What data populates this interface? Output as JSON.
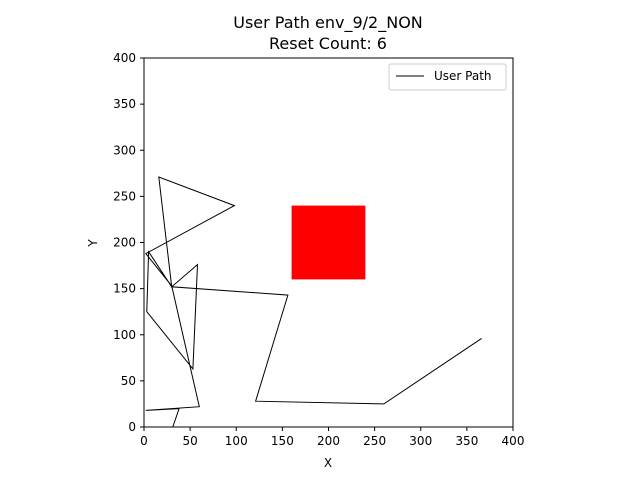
{
  "chart_data": {
    "type": "line",
    "title": "User Path env_9/2_NON",
    "subtitle": "Reset Count: 6",
    "xlabel": "X",
    "ylabel": "Y",
    "xlim": [
      0,
      400
    ],
    "ylim": [
      0,
      400
    ],
    "xticks": [
      "0",
      "50",
      "100",
      "150",
      "200",
      "250",
      "300",
      "350",
      "400"
    ],
    "yticks": [
      "0",
      "50",
      "100",
      "150",
      "200",
      "250",
      "300",
      "350",
      "400"
    ],
    "grid": false,
    "legend": {
      "position": "top-right",
      "entries": [
        "User Path"
      ]
    },
    "series": [
      {
        "name": "User Path",
        "color": "#000000",
        "x": [
          366,
          260,
          121,
          156,
          30,
          58,
          53,
          3,
          5,
          30,
          16,
          98,
          2,
          30,
          60,
          2,
          38,
          25
        ],
        "y": [
          96,
          25,
          28,
          143,
          152,
          176,
          63,
          125,
          190,
          152,
          271,
          240,
          188,
          153,
          22,
          18,
          20,
          -18
        ]
      }
    ],
    "obstacle": {
      "color": "#ff0000",
      "x_range": [
        160,
        240
      ],
      "y_range": [
        160,
        240
      ]
    }
  }
}
